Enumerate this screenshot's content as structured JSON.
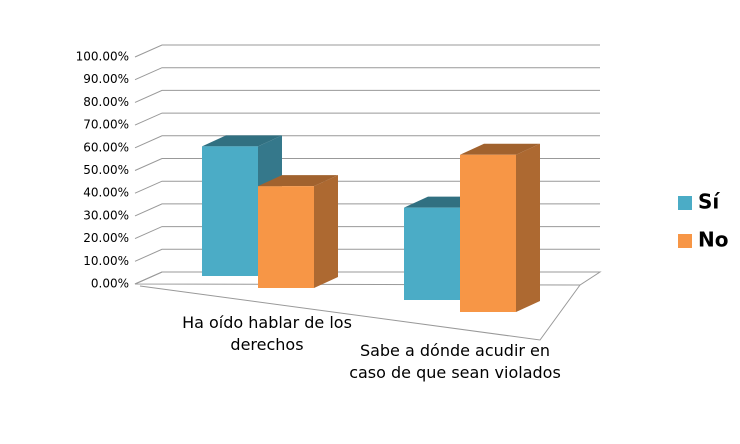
{
  "chart_data": {
    "type": "bar3d",
    "categories": [
      "Ha oído hablar de los derechos",
      "Sabe a dónde acudir en caso de que sean violados"
    ],
    "series": [
      {
        "name": "Sí",
        "color": "#4bacc6",
        "values": [
          56,
          37
        ]
      },
      {
        "name": "No",
        "color": "#f79646",
        "values": [
          44,
          63
        ]
      }
    ],
    "ylim": [
      0,
      100
    ],
    "yticks": [
      {
        "value": 0,
        "label": "0.00%"
      },
      {
        "value": 10,
        "label": "10.00%"
      },
      {
        "value": 20,
        "label": "20.00%"
      },
      {
        "value": 30,
        "label": "30.00%"
      },
      {
        "value": 40,
        "label": "40.00%"
      },
      {
        "value": 50,
        "label": "50.00%"
      },
      {
        "value": 60,
        "label": "60.00%"
      },
      {
        "value": 70,
        "label": "70.00%"
      },
      {
        "value": 80,
        "label": "80.00%"
      },
      {
        "value": 90,
        "label": "90.00%"
      },
      {
        "value": 100,
        "label": "100.00%"
      }
    ],
    "grid": true,
    "legend": "right"
  }
}
